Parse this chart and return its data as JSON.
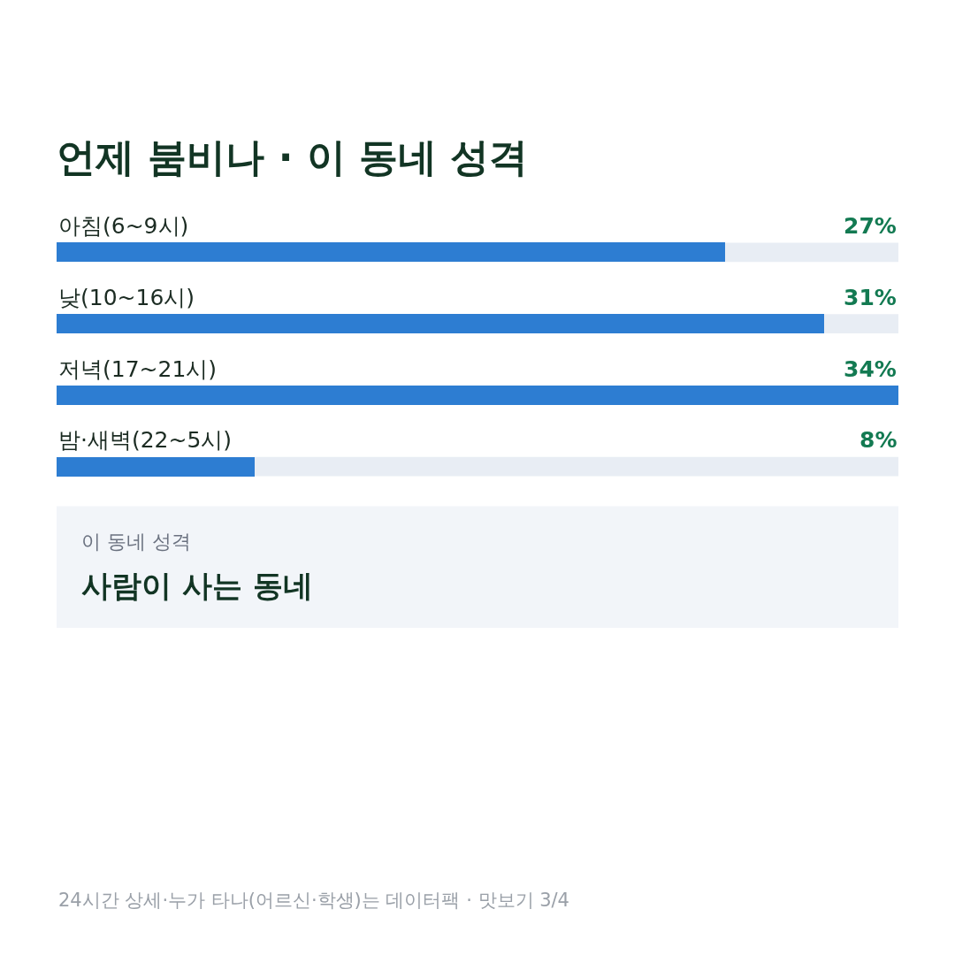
{
  "chart_data": {
    "type": "bar",
    "orientation": "horizontal",
    "title": "언제 붐비나 · 이 동네 성격",
    "categories": [
      "아침(6~9시)",
      "낮(10~16시)",
      "저녁(17~21시)",
      "밤·새벽(22~5시)"
    ],
    "values": [
      27,
      31,
      34,
      8
    ],
    "color": "#2d7dd2",
    "value_labels": [
      "27%",
      "31%",
      "34%",
      "8%"
    ],
    "xlim": [
      0,
      34
    ],
    "grid": false,
    "tick_labels": false,
    "annotations": [
      "이 동네 성격",
      "사람이 사는 동네",
      "24시간 상세·누가 타나(어르신·학생)는 데이터팩 · 맛보기 3/4"
    ]
  }
}
